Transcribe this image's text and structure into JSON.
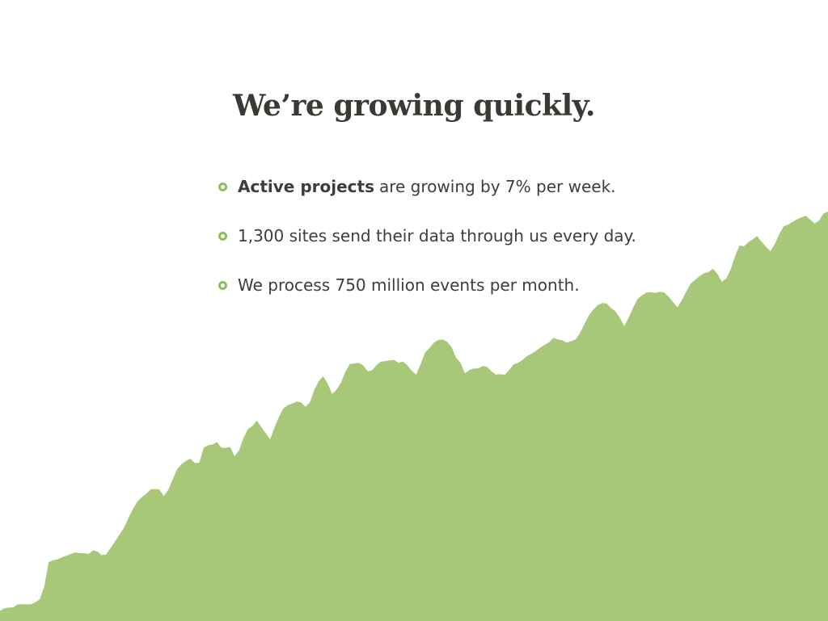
{
  "slide": {
    "title": "We’re growing quickly.",
    "bullets": [
      {
        "bold": "Active projects",
        "text": "are growing by 7% per week."
      },
      {
        "bold": "",
        "text": "1,300 sites send their data through us every day."
      },
      {
        "bold": "",
        "text": "We process 750 million events per month."
      }
    ]
  },
  "colors": {
    "area_fill": "#a7c878",
    "bullet_accent": "#8cbf5a",
    "title_text": "#3a3a35",
    "body_text": "#3d3d3d"
  },
  "chart_data": {
    "type": "area",
    "title": "",
    "xlabel": "",
    "ylabel": "",
    "grid": false,
    "legend": "none",
    "ylim": [
      0,
      100
    ],
    "values": [
      2.3,
      2.9,
      3.1,
      3.1,
      3.9,
      3.9,
      3.9,
      3.9,
      4.4,
      5.2,
      8.3,
      14.2,
      14.7,
      14.9,
      15.4,
      15.8,
      16.2,
      16.6,
      16.4,
      16.4,
      16.2,
      17.1,
      16.8,
      15.9,
      16.1,
      17.7,
      19.3,
      21.0,
      22.6,
      25.0,
      27.2,
      29.0,
      30.1,
      30.9,
      32.0,
      32.1,
      32.0,
      30.4,
      31.9,
      34.5,
      36.9,
      38.2,
      39.0,
      39.5,
      38.5,
      38.5,
      42.2,
      42.8,
      43.0,
      43.6,
      42.2,
      42.2,
      42.4,
      40.1,
      41.6,
      44.6,
      46.8,
      47.5,
      48.9,
      47.3,
      45.8,
      44.2,
      47.2,
      49.8,
      51.8,
      52.6,
      53.0,
      53.5,
      53.3,
      52.2,
      53.3,
      56.4,
      58.5,
      59.7,
      57.9,
      55.4,
      56.4,
      58.1,
      60.8,
      62.7,
      62.8,
      63.0,
      62.4,
      60.9,
      61.1,
      62.4,
      63.3,
      63.4,
      63.6,
      63.7,
      63.0,
      63.3,
      62.4,
      61.0,
      60.1,
      62.7,
      65.5,
      66.6,
      67.9,
      68.6,
      68.7,
      68.1,
      66.8,
      64.2,
      63.0,
      60.4,
      61.2,
      61.6,
      61.6,
      62.2,
      62.0,
      60.9,
      60.1,
      60.2,
      60.1,
      61.2,
      62.6,
      63.0,
      63.7,
      64.6,
      65.2,
      65.9,
      66.7,
      67.4,
      68.0,
      69.1,
      68.7,
      68.5,
      67.9,
      68.3,
      68.7,
      70.3,
      72.5,
      74.6,
      76.0,
      77.1,
      77.6,
      77.5,
      76.4,
      75.6,
      74.0,
      72.0,
      74.1,
      76.5,
      78.6,
      79.5,
      80.2,
      80.3,
      80.1,
      80.4,
      80.2,
      79.2,
      77.8,
      76.6,
      78.3,
      80.5,
      82.4,
      83.3,
      84.2,
      84.9,
      85.2,
      86.0,
      84.8,
      82.8,
      83.6,
      85.8,
      89.1,
      91.7,
      91.5,
      92.5,
      93.2,
      94.0,
      92.6,
      91.4,
      90.3,
      92.1,
      94.5,
      96.4,
      96.8,
      97.5,
      98.1,
      98.6,
      99.0,
      98.0,
      97.1,
      97.8,
      99.5,
      100.0
    ]
  }
}
